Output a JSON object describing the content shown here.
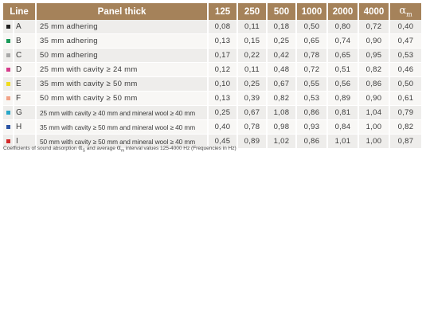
{
  "table": {
    "headers": {
      "line": "Line",
      "panel": "Panel thick",
      "f125": "125",
      "f250": "250",
      "f500": "500",
      "f1000": "1000",
      "f2000": "2000",
      "f4000": "4000",
      "alpha_symbol": "α",
      "alpha_sub": "m"
    },
    "rows": [
      {
        "color": "#222222",
        "letter": "A",
        "desc": "25 mm adhering",
        "v125": "0,08",
        "v250": "0,11",
        "v500": "0,18",
        "v1000": "0,50",
        "v2000": "0,80",
        "v4000": "0,72",
        "am": "0,40"
      },
      {
        "color": "#1a9a5a",
        "letter": "B",
        "desc": "35 mm adhering",
        "v125": "0,13",
        "v250": "0,15",
        "v500": "0,25",
        "v1000": "0,65",
        "v2000": "0,74",
        "v4000": "0,90",
        "am": "0,47"
      },
      {
        "color": "#a8a8a8",
        "letter": "C",
        "desc": "50 mm adhering",
        "v125": "0,17",
        "v250": "0,22",
        "v500": "0,42",
        "v1000": "0,78",
        "v2000": "0,65",
        "v4000": "0,95",
        "am": "0,53"
      },
      {
        "color": "#d63c8c",
        "letter": "D",
        "desc": "25 mm with cavity ≥ 24 mm",
        "v125": "0,12",
        "v250": "0,11",
        "v500": "0,48",
        "v1000": "0,72",
        "v2000": "0,51",
        "v4000": "0,82",
        "am": "0,46"
      },
      {
        "color": "#f0dc1e",
        "letter": "E",
        "desc": "35 mm with cavity ≥ 50 mm",
        "v125": "0,10",
        "v250": "0,25",
        "v500": "0,67",
        "v1000": "0,55",
        "v2000": "0,56",
        "v4000": "0,86",
        "am": "0,50"
      },
      {
        "color": "#f2a287",
        "letter": "F",
        "desc": "50 mm with cavity ≥ 50 mm",
        "v125": "0,13",
        "v250": "0,39",
        "v500": "0,82",
        "v1000": "0,53",
        "v2000": "0,89",
        "v4000": "0,90",
        "am": "0,61"
      },
      {
        "color": "#28a6c8",
        "letter": "G",
        "desc": "25 mm with cavity ≥ 40 mm and mineral wool ≥ 40 mm",
        "v125": "0,25",
        "v250": "0,67",
        "v500": "1,08",
        "v1000": "0,86",
        "v2000": "0,81",
        "v4000": "1,04",
        "am": "0,79"
      },
      {
        "color": "#2c54a4",
        "letter": "H",
        "desc": "35 mm with cavity ≥ 50 mm and mineral wool ≥ 40 mm",
        "v125": "0,40",
        "v250": "0,78",
        "v500": "0,98",
        "v1000": "0,93",
        "v2000": "0,84",
        "v4000": "1,00",
        "am": "0,82"
      },
      {
        "color": "#d42a2a",
        "letter": "I",
        "desc": "50 mm with cavity ≥ 50 mm and mineral wool ≥ 40 mm",
        "v125": "0,45",
        "v250": "0,89",
        "v500": "1,02",
        "v1000": "0,86",
        "v2000": "1,01",
        "v4000": "1,00",
        "am": "0,87"
      }
    ]
  },
  "caption": {
    "part1": "Coefficients of sound absorption ",
    "alpha_s": "α",
    "sub_s": "S",
    "part2": " and average ",
    "alpha_m": "α",
    "sub_m": "m",
    "part3": " interval values 125-4000 Hz (Frequencies in Hz)"
  }
}
